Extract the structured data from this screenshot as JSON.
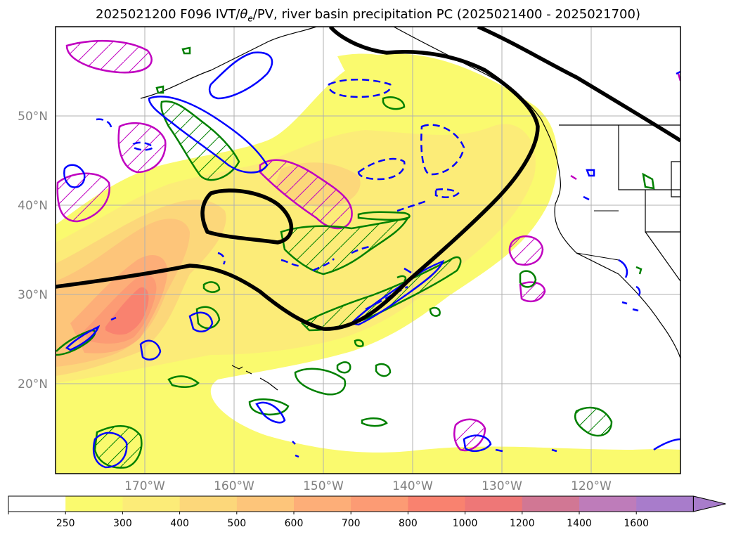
{
  "title": {
    "prefix": "2025021200 F096 IVT/",
    "theta": "θ",
    "theta_sub": "e",
    "suffix": "/PV, river basin precipitation PC (2025021400 - 2025021700)"
  },
  "map": {
    "lon_range": [
      -180,
      -110
    ],
    "lat_range": [
      10,
      60
    ],
    "lat_ticks": [
      {
        "value": 20,
        "label": "20°N"
      },
      {
        "value": 30,
        "label": "30°N"
      },
      {
        "value": 40,
        "label": "40°N"
      },
      {
        "value": 50,
        "label": "50°N"
      }
    ],
    "lon_ticks": [
      {
        "value": -170,
        "label": "170°W"
      },
      {
        "value": -160,
        "label": "160°W"
      },
      {
        "value": -150,
        "label": "150°W"
      },
      {
        "value": -140,
        "label": "140°W"
      },
      {
        "value": -130,
        "label": "130°W"
      },
      {
        "value": -120,
        "label": "120°W"
      }
    ],
    "grid": true
  },
  "colorbar": {
    "levels": [
      "250",
      "300",
      "400",
      "500",
      "600",
      "700",
      "800",
      "1000",
      "1200",
      "1400",
      "1600"
    ],
    "colors": [
      "#ffffff",
      "#fafa6e",
      "#fcec78",
      "#fcd77a",
      "#fdc57a",
      "#fdae78",
      "#fc9b74",
      "#f9826f",
      "#ee7777",
      "#d17794",
      "#be7cba",
      "#a87ccb"
    ],
    "extend": "max"
  },
  "ivt_shading_colors": {
    "band_250": "#fafa6e",
    "band_300": "#fcec78",
    "band_400": "#fcd77a",
    "band_500": "#fdc57a",
    "band_600": "#fdae78",
    "band_700": "#fc9b74",
    "band_800": "#f9826f"
  },
  "contour_colors": {
    "pv_thick": "#000000",
    "green": "#008000",
    "blue": "#0000ff",
    "magenta": "#c000c0",
    "coast": "#000000"
  }
}
